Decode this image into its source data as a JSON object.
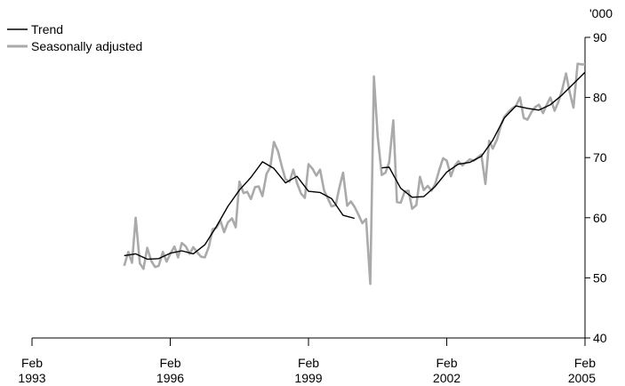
{
  "chart_data": {
    "type": "line",
    "title": "",
    "xlabel": "",
    "ylabel": "'000",
    "legend_position": "top-left",
    "grid": false,
    "xlim": [
      1993.08,
      2005.08
    ],
    "ylim": [
      40,
      90
    ],
    "y_ticks": [
      40,
      50,
      60,
      70,
      80,
      90
    ],
    "x_ticks": [
      {
        "x": 1993.08,
        "month": "Feb",
        "year": "1993"
      },
      {
        "x": 1996.08,
        "month": "Feb",
        "year": "1996"
      },
      {
        "x": 1999.08,
        "month": "Feb",
        "year": "1999"
      },
      {
        "x": 2002.08,
        "month": "Feb",
        "year": "2002"
      },
      {
        "x": 2005.08,
        "month": "Feb",
        "year": "2005"
      }
    ],
    "series": [
      {
        "name": "Trend",
        "color": "#000000",
        "segments": [
          {
            "x": [
              1995.08,
              1995.33,
              1995.58,
              1995.83,
              1996.08,
              1996.33,
              1996.58,
              1996.83,
              1997.08,
              1997.33,
              1997.58,
              1997.83,
              1998.08,
              1998.33,
              1998.58,
              1998.83,
              1999.08,
              1999.33,
              1999.58,
              1999.83,
              2000.08,
              2000.33,
              2000.5
            ],
            "values": [
              53.7,
              54.0,
              53.1,
              53.2,
              54.1,
              54.5,
              54.0,
              55.5,
              58.5,
              61.9,
              64.6,
              66.7,
              69.3,
              68.2,
              65.8,
              66.9,
              64.4,
              64.2,
              63.2,
              60.4,
              59.9,
              null,
              null
            ]
          },
          {
            "x": [
              2000.67,
              2000.83,
              2001.08,
              2001.33,
              2001.58,
              2001.83,
              2002.08,
              2002.33,
              2002.58,
              2002.83,
              2003.08,
              2003.33,
              2003.58,
              2003.83,
              2004.08,
              2004.33,
              2004.58,
              2004.83,
              2005.08
            ],
            "values": [
              68.3,
              68.4,
              64.9,
              63.4,
              63.5,
              65.2,
              67.6,
              68.9,
              69.2,
              70.2,
              72.9,
              76.6,
              78.6,
              78.2,
              77.9,
              78.8,
              80.4,
              82.3,
              84.2
            ]
          }
        ]
      },
      {
        "name": "Seasonally adjusted",
        "color": "#aaaaaa",
        "x": [
          1995.08,
          1995.17,
          1995.25,
          1995.33,
          1995.42,
          1995.5,
          1995.58,
          1995.67,
          1995.75,
          1995.83,
          1995.92,
          1996.0,
          1996.08,
          1996.17,
          1996.25,
          1996.33,
          1996.42,
          1996.5,
          1996.58,
          1996.67,
          1996.75,
          1996.83,
          1996.92,
          1997.0,
          1997.08,
          1997.17,
          1997.25,
          1997.33,
          1997.42,
          1997.5,
          1997.58,
          1997.67,
          1997.75,
          1997.83,
          1997.92,
          1998.0,
          1998.08,
          1998.17,
          1998.25,
          1998.33,
          1998.42,
          1998.5,
          1998.58,
          1998.67,
          1998.75,
          1998.83,
          1998.92,
          1999.0,
          1999.08,
          1999.17,
          1999.25,
          1999.33,
          1999.42,
          1999.5,
          1999.58,
          1999.67,
          1999.75,
          1999.83,
          1999.92,
          2000.0,
          2000.08,
          2000.17,
          2000.25,
          2000.33,
          2000.42,
          2000.5,
          2000.58,
          2000.67,
          2000.75,
          2000.83,
          2000.92,
          2001.0,
          2001.08,
          2001.17,
          2001.25,
          2001.33,
          2001.42,
          2001.5,
          2001.58,
          2001.67,
          2001.75,
          2001.83,
          2001.92,
          2002.0,
          2002.08,
          2002.17,
          2002.25,
          2002.33,
          2002.42,
          2002.5,
          2002.58,
          2002.67,
          2002.75,
          2002.83,
          2002.92,
          2003.0,
          2003.08,
          2003.17,
          2003.25,
          2003.33,
          2003.42,
          2003.5,
          2003.58,
          2003.67,
          2003.75,
          2003.83,
          2003.92,
          2004.0,
          2004.08,
          2004.17,
          2004.25,
          2004.33,
          2004.42,
          2004.5,
          2004.58,
          2004.67,
          2004.75,
          2004.83,
          2004.92,
          2005.0,
          2005.08
        ],
        "values": [
          52.0,
          54.3,
          52.5,
          60.0,
          52.4,
          51.5,
          55.0,
          52.8,
          51.8,
          52.0,
          54.3,
          52.7,
          54.0,
          55.2,
          53.4,
          55.8,
          55.2,
          54.0,
          55.1,
          54.2,
          53.5,
          53.4,
          55.2,
          58.1,
          58.3,
          59.5,
          57.6,
          59.2,
          59.9,
          58.4,
          66.0,
          64.1,
          64.3,
          63.1,
          65.1,
          65.2,
          63.6,
          67.3,
          68.4,
          72.6,
          71.0,
          68.6,
          66.4,
          66.0,
          68.0,
          65.8,
          64.0,
          63.3,
          68.9,
          68.1,
          67.0,
          68.0,
          64.5,
          63.2,
          61.9,
          62.1,
          65.0,
          67.5,
          62.0,
          62.7,
          61.8,
          60.4,
          59.1,
          59.8,
          49.0,
          83.5,
          73.6,
          67.1,
          67.5,
          69.2,
          76.2,
          62.6,
          62.5,
          64.4,
          64.5,
          61.5,
          62.1,
          66.8,
          64.6,
          65.3,
          64.5,
          65.6,
          68.0,
          69.9,
          69.5,
          66.9,
          68.6,
          69.4,
          68.7,
          69.2,
          69.7,
          69.5,
          70.0,
          70.5,
          65.6,
          72.8,
          71.5,
          73.0,
          75.2,
          76.8,
          77.6,
          78.2,
          78.6,
          80.0,
          76.6,
          76.3,
          77.6,
          78.4,
          78.8,
          77.4,
          78.8,
          80.0,
          77.8,
          79.2,
          81.2,
          84.0,
          80.8,
          78.3,
          85.6,
          85.5,
          85.5
        ]
      }
    ]
  }
}
